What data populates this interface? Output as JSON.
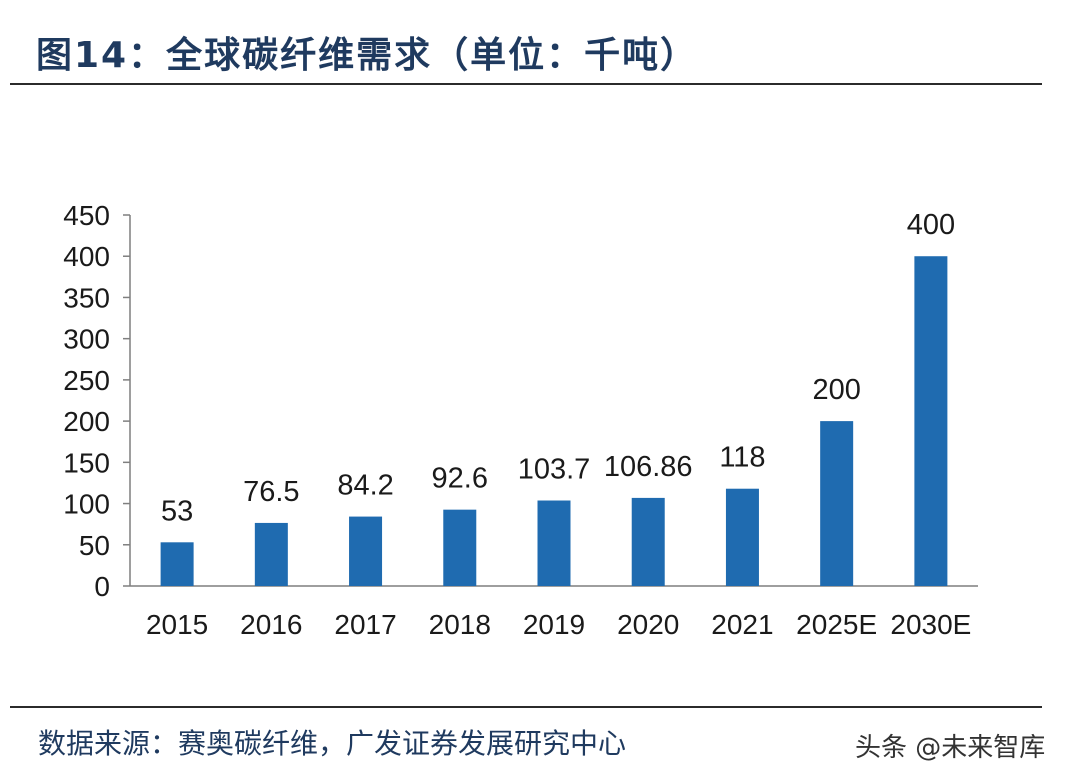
{
  "title": "图14：全球碳纤维需求（单位：千吨）",
  "source": "数据来源：赛奥碳纤维，广发证券发展研究中心",
  "watermark": "头条 @未来智库",
  "colors": {
    "bar": "#1f6bb0",
    "axis": "#7f7f7f",
    "text": "#1a1a1a"
  },
  "chart_data": {
    "type": "bar",
    "title": "全球碳纤维需求（单位：千吨）",
    "xlabel": "",
    "ylabel": "",
    "categories": [
      "2015",
      "2016",
      "2017",
      "2018",
      "2019",
      "2020",
      "2021",
      "2025E",
      "2030E"
    ],
    "values": [
      53,
      76.5,
      84.2,
      92.6,
      103.7,
      106.86,
      118,
      200,
      400
    ],
    "labels": [
      "53",
      "76.5",
      "84.2",
      "92.6",
      "103.7",
      "106.86",
      "118",
      "200",
      "400"
    ],
    "ylim": [
      0,
      450
    ],
    "yticks": [
      "0",
      "50",
      "100",
      "150",
      "200",
      "250",
      "300",
      "350",
      "400",
      "450"
    ],
    "grid": false,
    "legend": "none"
  }
}
